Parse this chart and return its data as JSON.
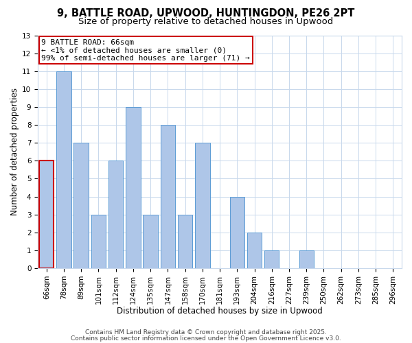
{
  "title": "9, BATTLE ROAD, UPWOOD, HUNTINGDON, PE26 2PT",
  "subtitle": "Size of property relative to detached houses in Upwood",
  "xlabel": "Distribution of detached houses by size in Upwood",
  "ylabel": "Number of detached properties",
  "categories": [
    "66sqm",
    "78sqm",
    "89sqm",
    "101sqm",
    "112sqm",
    "124sqm",
    "135sqm",
    "147sqm",
    "158sqm",
    "170sqm",
    "181sqm",
    "193sqm",
    "204sqm",
    "216sqm",
    "227sqm",
    "239sqm",
    "250sqm",
    "262sqm",
    "273sqm",
    "285sqm",
    "296sqm"
  ],
  "values": [
    6,
    11,
    7,
    3,
    6,
    9,
    3,
    8,
    3,
    7,
    0,
    4,
    2,
    1,
    0,
    1,
    0,
    0,
    0,
    0,
    0
  ],
  "bar_color": "#aec6e8",
  "bar_edge_color": "#5b9bd5",
  "highlight_index": 0,
  "highlight_bar_edge_color": "#cc0000",
  "annotation_text": "9 BATTLE ROAD: 66sqm\n← <1% of detached houses are smaller (0)\n99% of semi-detached houses are larger (71) →",
  "annotation_box_edge_color": "#cc0000",
  "ylim": [
    0,
    13
  ],
  "yticks": [
    0,
    1,
    2,
    3,
    4,
    5,
    6,
    7,
    8,
    9,
    10,
    11,
    12,
    13
  ],
  "footer1": "Contains HM Land Registry data © Crown copyright and database right 2025.",
  "footer2": "Contains public sector information licensed under the Open Government Licence v3.0.",
  "background_color": "#ffffff",
  "grid_color": "#c8d8ec",
  "title_fontsize": 10.5,
  "subtitle_fontsize": 9.5,
  "axis_label_fontsize": 8.5,
  "tick_fontsize": 7.5,
  "annotation_fontsize": 8,
  "footer_fontsize": 6.5
}
